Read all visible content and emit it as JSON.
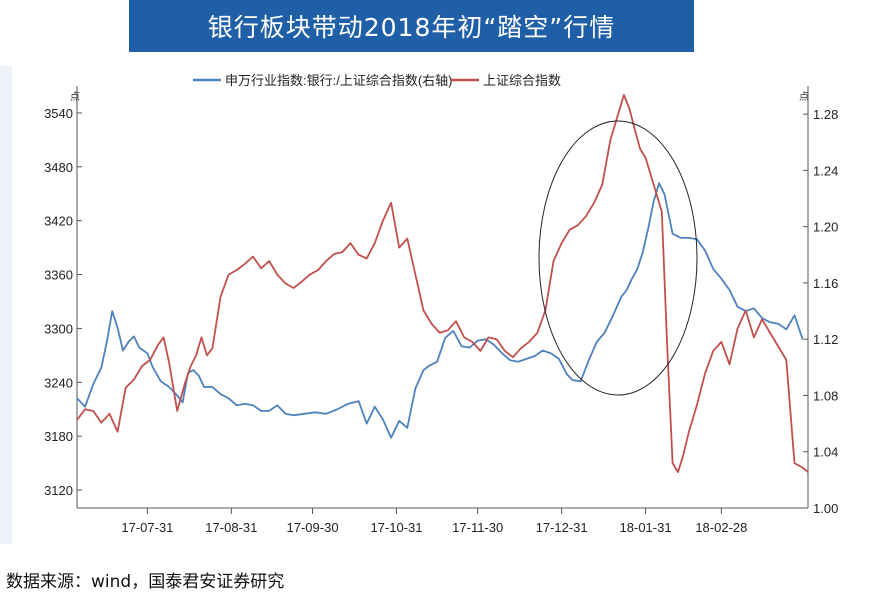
{
  "header": {
    "title": "银行板块带动2018年初“踏空”行情"
  },
  "source_note": "数据来源：wind，国泰君安证券研究",
  "chart_data": {
    "type": "line",
    "y_left": {
      "label": "点",
      "lim": [
        3100,
        3570
      ],
      "ticks": [
        3120,
        3180,
        3240,
        3300,
        3360,
        3420,
        3480,
        3540
      ]
    },
    "y_right": {
      "label": "点",
      "lim": [
        1.0,
        1.3
      ],
      "ticks": [
        1.0,
        1.04,
        1.08,
        1.12,
        1.16,
        1.2,
        1.24,
        1.28
      ]
    },
    "x_ticks": [
      "17-07-31",
      "17-08-31",
      "17-09-30",
      "17-10-31",
      "17-11-30",
      "17-12-31",
      "18-01-31",
      "18-02-28"
    ],
    "x_tick_pos": [
      26,
      57,
      87,
      118,
      148,
      179,
      210,
      238
    ],
    "x_lim": [
      0,
      270
    ],
    "legend_position": "top",
    "colors": {
      "bank": "#4f81bd",
      "sh": "#c0504d"
    },
    "series": [
      {
        "name": "申万行业指数:银行:/上证综合指数(右轴)",
        "axis": "right",
        "x": [
          0,
          3,
          6,
          9,
          11,
          13,
          15,
          17,
          19,
          21,
          23,
          26,
          28,
          31,
          34,
          37,
          39,
          41,
          43,
          45,
          47,
          50,
          53,
          56,
          59,
          62,
          65,
          68,
          71,
          74,
          77,
          80,
          84,
          88,
          92,
          96,
          100,
          104,
          107,
          110,
          113,
          116,
          119,
          122,
          125,
          128,
          130,
          133,
          136,
          139,
          142,
          145,
          148,
          151,
          154,
          157,
          160,
          163,
          166,
          169,
          172,
          175,
          178,
          181,
          183,
          186,
          189,
          192,
          195,
          198,
          201,
          203,
          205,
          207,
          209,
          211,
          213,
          215,
          217,
          220,
          223,
          226,
          229,
          232,
          235,
          238,
          241,
          244,
          247,
          250,
          253,
          256,
          259,
          262,
          265,
          268
        ],
        "values": [
          1.078,
          1.072,
          1.088,
          1.1,
          1.118,
          1.14,
          1.128,
          1.112,
          1.118,
          1.122,
          1.114,
          1.11,
          1.1,
          1.09,
          1.086,
          1.08,
          1.075,
          1.096,
          1.098,
          1.094,
          1.086,
          1.086,
          1.081,
          1.078,
          1.073,
          1.074,
          1.073,
          1.069,
          1.069,
          1.073,
          1.067,
          1.066,
          1.067,
          1.068,
          1.067,
          1.07,
          1.074,
          1.076,
          1.06,
          1.072,
          1.063,
          1.05,
          1.062,
          1.057,
          1.085,
          1.098,
          1.101,
          1.104,
          1.121,
          1.126,
          1.115,
          1.114,
          1.119,
          1.12,
          1.116,
          1.11,
          1.105,
          1.104,
          1.106,
          1.108,
          1.112,
          1.11,
          1.106,
          1.095,
          1.091,
          1.09,
          1.105,
          1.118,
          1.125,
          1.137,
          1.15,
          1.155,
          1.163,
          1.17,
          1.182,
          1.199,
          1.218,
          1.231,
          1.223,
          1.195,
          1.192,
          1.192,
          1.191,
          1.183,
          1.17,
          1.163,
          1.155,
          1.143,
          1.14,
          1.142,
          1.135,
          1.132,
          1.131,
          1.127,
          1.137,
          1.12
        ]
      },
      {
        "name": "上证综合指数",
        "axis": "left",
        "x": [
          0,
          3,
          6,
          9,
          12,
          15,
          18,
          21,
          24,
          27,
          30,
          32,
          34,
          37,
          40,
          42,
          44,
          46,
          48,
          50,
          53,
          56,
          59,
          62,
          65,
          68,
          71,
          74,
          77,
          80,
          83,
          86,
          89,
          92,
          95,
          98,
          101,
          104,
          107,
          110,
          113,
          116,
          119,
          122,
          125,
          128,
          131,
          134,
          137,
          140,
          143,
          146,
          149,
          152,
          155,
          158,
          161,
          164,
          167,
          170,
          173,
          176,
          179,
          182,
          185,
          188,
          191,
          194,
          197,
          200,
          202,
          204,
          206,
          208,
          210,
          212,
          214,
          216,
          218,
          220,
          222,
          224,
          226,
          229,
          232,
          235,
          238,
          241,
          244,
          247,
          250,
          253,
          256,
          259,
          262,
          265,
          268,
          270
        ],
        "values": [
          3198,
          3210,
          3208,
          3195,
          3205,
          3185,
          3234,
          3243,
          3258,
          3265,
          3282,
          3290,
          3262,
          3208,
          3240,
          3258,
          3270,
          3290,
          3270,
          3278,
          3335,
          3360,
          3365,
          3372,
          3380,
          3367,
          3375,
          3360,
          3350,
          3345,
          3352,
          3360,
          3365,
          3375,
          3383,
          3385,
          3395,
          3382,
          3378,
          3395,
          3420,
          3440,
          3390,
          3400,
          3360,
          3320,
          3305,
          3295,
          3298,
          3308,
          3290,
          3285,
          3275,
          3290,
          3288,
          3275,
          3268,
          3278,
          3285,
          3295,
          3320,
          3375,
          3395,
          3410,
          3415,
          3425,
          3440,
          3460,
          3510,
          3540,
          3560,
          3545,
          3522,
          3500,
          3490,
          3470,
          3450,
          3430,
          3280,
          3150,
          3140,
          3160,
          3185,
          3215,
          3250,
          3275,
          3285,
          3260,
          3300,
          3320,
          3290,
          3310,
          3295,
          3280,
          3265,
          3150,
          3145,
          3140
        ]
      }
    ]
  }
}
